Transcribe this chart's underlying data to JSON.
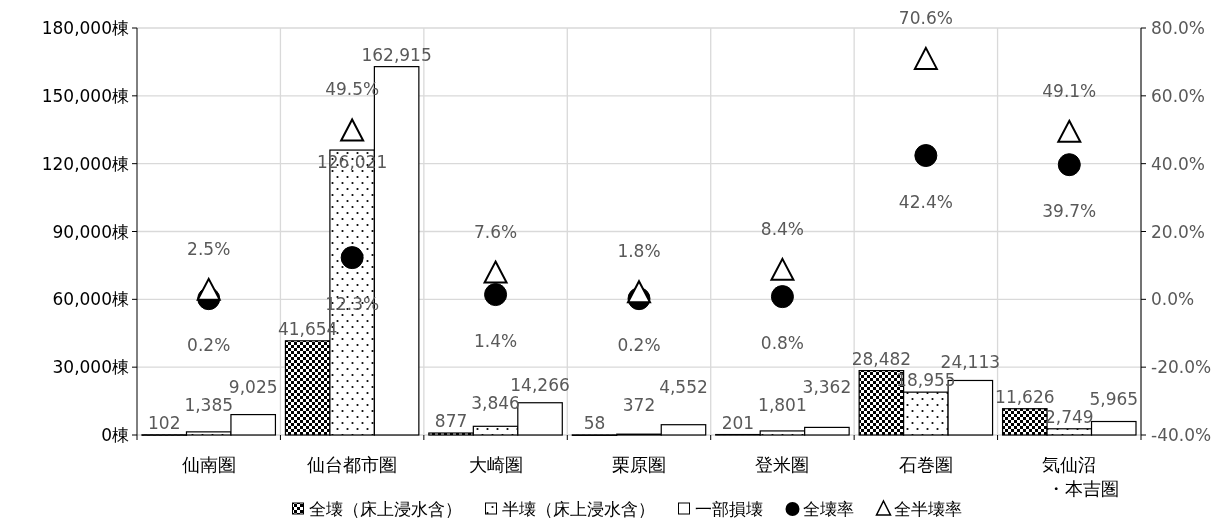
{
  "chart_data": {
    "type": "bar",
    "categories": [
      "仙南圏",
      "仙台都市圏",
      "大崎圏",
      "栗原圏",
      "登米圏",
      "石巻圏",
      "気仙沼・本吉圏"
    ],
    "series": [
      {
        "name": "全壊（床上浸水含）",
        "color": "#000000",
        "values": [
          102,
          41654,
          877,
          58,
          201,
          28482,
          11626
        ],
        "value_labels": [
          "102",
          "41,654",
          "877",
          "58",
          "201",
          "28,482",
          "11,626"
        ]
      },
      {
        "name": "半壊（床上浸水含）",
        "color": "#000000",
        "values": [
          1385,
          126021,
          3846,
          372,
          1801,
          18955,
          2749
        ],
        "value_labels": [
          "1,385",
          "126,021",
          "3,846",
          "372",
          "1,801",
          "18,955",
          "2,749"
        ]
      },
      {
        "name": "一部損壊",
        "color": "#ffffff",
        "values": [
          9025,
          162915,
          14266,
          4552,
          3362,
          24113,
          5965
        ],
        "value_labels": [
          "9,025",
          "162,915",
          "14,266",
          "4,552",
          "3,362",
          "24,113",
          "5,965"
        ]
      },
      {
        "name": "全壊率",
        "type": "scatter",
        "axis": "y2",
        "marker": "circle",
        "color": "#000000",
        "values": [
          0.2,
          12.3,
          1.4,
          0.2,
          0.8,
          42.4,
          39.7
        ],
        "value_labels": [
          "0.2%",
          "12.3%",
          "1.4%",
          "0.2%",
          "0.8%",
          "42.4%",
          "39.7%"
        ]
      },
      {
        "name": "全半壊率",
        "type": "scatter",
        "axis": "y2",
        "marker": "triangle",
        "color": "#000000",
        "values": [
          2.5,
          49.5,
          7.6,
          1.8,
          8.4,
          70.6,
          49.1
        ],
        "value_labels": [
          "2.5%",
          "49.5%",
          "7.6%",
          "1.8%",
          "8.4%",
          "70.6%",
          "49.1%"
        ]
      }
    ],
    "ylim": [
      0,
      180000
    ],
    "yticks": [
      {
        "value": 0,
        "label": "0棟"
      },
      {
        "value": 30000,
        "label": "30,000棟"
      },
      {
        "value": 60000,
        "label": "60,000棟"
      },
      {
        "value": 90000,
        "label": "90,000棟"
      },
      {
        "value": 120000,
        "label": "120,000棟"
      },
      {
        "value": 150000,
        "label": "150,000棟"
      },
      {
        "value": 180000,
        "label": "180,000棟"
      }
    ],
    "y2lim": [
      -40,
      80
    ],
    "y2ticks": [
      {
        "value": -40,
        "label": "-40.0%"
      },
      {
        "value": -20,
        "label": "-20.0%"
      },
      {
        "value": 0,
        "label": "0.0%"
      },
      {
        "value": 20,
        "label": "20.0%"
      },
      {
        "value": 40,
        "label": "40.0%"
      },
      {
        "value": 60,
        "label": "60.0%"
      },
      {
        "value": 80,
        "label": "80.0%"
      }
    ],
    "grid": true,
    "legend": "bottom"
  }
}
